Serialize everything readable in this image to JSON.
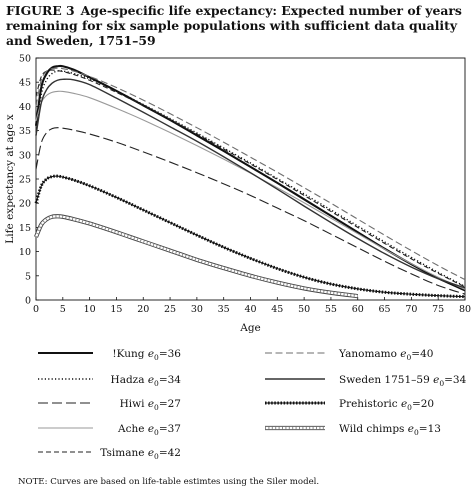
{
  "figure": {
    "number": "FIGURE 3",
    "title": "Age-specific life expectancy: Expected number of years remaining for six sample populations with sufficient data quality and Sweden, 1751–59"
  },
  "note": "NOTE: Curves are based on life-table estimtes using the Siler model.",
  "chart_data": {
    "type": "line",
    "title": "",
    "xlabel": "Age",
    "ylabel": "Life expectancy at age x",
    "xlim": [
      0,
      80
    ],
    "ylim": [
      0,
      50
    ],
    "xticks": [
      0,
      5,
      10,
      15,
      20,
      25,
      30,
      35,
      40,
      45,
      50,
      55,
      60,
      65,
      70,
      75,
      80
    ],
    "yticks": [
      0,
      5,
      10,
      15,
      20,
      25,
      30,
      35,
      40,
      45,
      50
    ],
    "grid": false,
    "legend_position": "below",
    "series": [
      {
        "name": "!Kung",
        "e0": "36",
        "style": "thick-solid",
        "color": "#111111",
        "x": [
          0,
          1,
          2,
          3,
          4,
          5,
          7,
          10,
          15,
          20,
          25,
          30,
          35,
          40,
          45,
          50,
          55,
          60,
          65,
          70,
          75,
          80
        ],
        "y": [
          36,
          44,
          46.8,
          48,
          48.3,
          48.3,
          47.6,
          46,
          43.2,
          40.2,
          37.2,
          34,
          30.8,
          27.5,
          24.2,
          20.8,
          17.4,
          14,
          10.6,
          7.4,
          4.5,
          2
        ]
      },
      {
        "name": "Hadza",
        "e0": "34",
        "style": "dotted",
        "color": "#111111",
        "x": [
          0,
          1,
          2,
          3,
          4,
          5,
          7,
          10,
          15,
          20,
          25,
          30,
          35,
          40,
          45,
          50,
          55,
          60,
          65,
          70,
          75,
          80
        ],
        "y": [
          34,
          42.5,
          45.5,
          46.8,
          47.3,
          47.3,
          46.8,
          45.7,
          43.2,
          40.4,
          37.5,
          34.5,
          31.4,
          28.3,
          25.1,
          21.9,
          18.6,
          15.3,
          12,
          8.8,
          5.7,
          2.8
        ]
      },
      {
        "name": "Hiwi",
        "e0": "27",
        "style": "long-dash",
        "color": "#111111",
        "x": [
          0,
          1,
          2,
          3,
          4,
          5,
          7,
          10,
          15,
          20,
          25,
          30,
          35,
          40,
          45,
          50,
          55,
          60,
          65,
          70,
          75,
          80
        ],
        "y": [
          27,
          32.5,
          34.6,
          35.4,
          35.6,
          35.5,
          35.1,
          34.3,
          32.6,
          30.6,
          28.5,
          26.3,
          24,
          21.6,
          19,
          16.4,
          13.6,
          10.8,
          8,
          5.4,
          3,
          1.2
        ]
      },
      {
        "name": "Ache",
        "e0": "37",
        "style": "thin-solid",
        "color": "#999999",
        "x": [
          0,
          1,
          2,
          3,
          4,
          5,
          7,
          10,
          15,
          20,
          25,
          30,
          35,
          40,
          45,
          50,
          55,
          60,
          65,
          70,
          75,
          80
        ],
        "y": [
          37,
          40.8,
          42.3,
          42.9,
          43.1,
          43.1,
          42.7,
          41.8,
          39.6,
          37.2,
          34.6,
          31.9,
          29.1,
          26.2,
          23.2,
          20.1,
          16.9,
          13.7,
          10.5,
          7.5,
          4.7,
          2.2
        ]
      },
      {
        "name": "Tsimane",
        "e0": "42",
        "style": "short-dash",
        "color": "#111111",
        "x": [
          0,
          1,
          2,
          3,
          4,
          5,
          7,
          10,
          15,
          20,
          25,
          30,
          35,
          40,
          45,
          50,
          55,
          60,
          65,
          70,
          75,
          80
        ],
        "y": [
          42,
          46.2,
          47.3,
          47.5,
          47.4,
          47.2,
          46.6,
          45.4,
          42.9,
          40.2,
          37.3,
          34.3,
          31.2,
          28.1,
          24.9,
          21.6,
          18.3,
          15,
          11.7,
          8.5,
          5.5,
          2.7
        ]
      },
      {
        "name": "Yanomamo",
        "e0": "40",
        "style": "medium-dash",
        "color": "#777777",
        "x": [
          0,
          1,
          2,
          3,
          4,
          5,
          7,
          10,
          15,
          20,
          25,
          30,
          35,
          40,
          45,
          50,
          55,
          60,
          65,
          70,
          75,
          80
        ],
        "y": [
          40,
          45.5,
          47.3,
          47.8,
          47.9,
          47.8,
          47.3,
          46.2,
          43.9,
          41.3,
          38.5,
          35.6,
          32.6,
          29.5,
          26.4,
          23.2,
          20,
          16.7,
          13.4,
          10.2,
          7.1,
          4.2
        ]
      },
      {
        "name": "Sweden 1751–59",
        "e0": "34",
        "style": "medium-solid",
        "color": "#333333",
        "x": [
          0,
          1,
          2,
          3,
          4,
          5,
          7,
          10,
          15,
          20,
          25,
          30,
          35,
          40,
          45,
          50,
          55,
          60,
          65,
          70,
          75,
          80
        ],
        "y": [
          34,
          40.8,
          43.5,
          44.8,
          45.4,
          45.6,
          45.5,
          44.5,
          41.7,
          38.8,
          35.8,
          32.8,
          29.6,
          26.3,
          22.9,
          19.4,
          16,
          12.7,
          9.6,
          6.8,
          4.4,
          2.5
        ]
      },
      {
        "name": "Prehistoric",
        "e0": "20",
        "style": "beaded",
        "color": "#111111",
        "x": [
          0,
          1,
          2,
          3,
          4,
          5,
          7,
          10,
          15,
          20,
          25,
          30,
          35,
          40,
          45,
          50,
          55,
          60,
          65,
          70,
          75,
          80
        ],
        "y": [
          20,
          23.6,
          25,
          25.5,
          25.6,
          25.4,
          24.8,
          23.6,
          21.2,
          18.6,
          16,
          13.4,
          10.9,
          8.6,
          6.5,
          4.7,
          3.3,
          2.3,
          1.6,
          1.2,
          0.9,
          0.7
        ]
      },
      {
        "name": "Wild chimps",
        "e0": "13",
        "style": "double-ring",
        "color": "#555555",
        "x": [
          0,
          1,
          2,
          3,
          4,
          5,
          7,
          10,
          15,
          20,
          25,
          30,
          35,
          40,
          45,
          50,
          55,
          60
        ],
        "y": [
          13,
          15.6,
          16.7,
          17.2,
          17.3,
          17.2,
          16.7,
          15.8,
          14,
          12.1,
          10.2,
          8.3,
          6.6,
          5,
          3.6,
          2.4,
          1.5,
          0.8
        ]
      }
    ]
  },
  "legend": {
    "left": [
      {
        "name": "!Kung",
        "e0": "36",
        "style": "thick-solid"
      },
      {
        "name": "Hadza",
        "e0": "34",
        "style": "dotted"
      },
      {
        "name": "Hiwi",
        "e0": "27",
        "style": "long-dash"
      },
      {
        "name": "Ache",
        "e0": "37",
        "style": "thin-solid"
      },
      {
        "name": "Tsimane",
        "e0": "42",
        "style": "short-dash"
      }
    ],
    "right": [
      {
        "name": "Yanomamo",
        "e0": "40",
        "style": "medium-dash"
      },
      {
        "name": "Sweden 1751–59",
        "e0": "34",
        "style": "medium-solid"
      },
      {
        "name": "Prehistoric",
        "e0": "20",
        "style": "beaded"
      },
      {
        "name": "Wild chimps",
        "e0": "13",
        "style": "double-ring"
      }
    ]
  }
}
